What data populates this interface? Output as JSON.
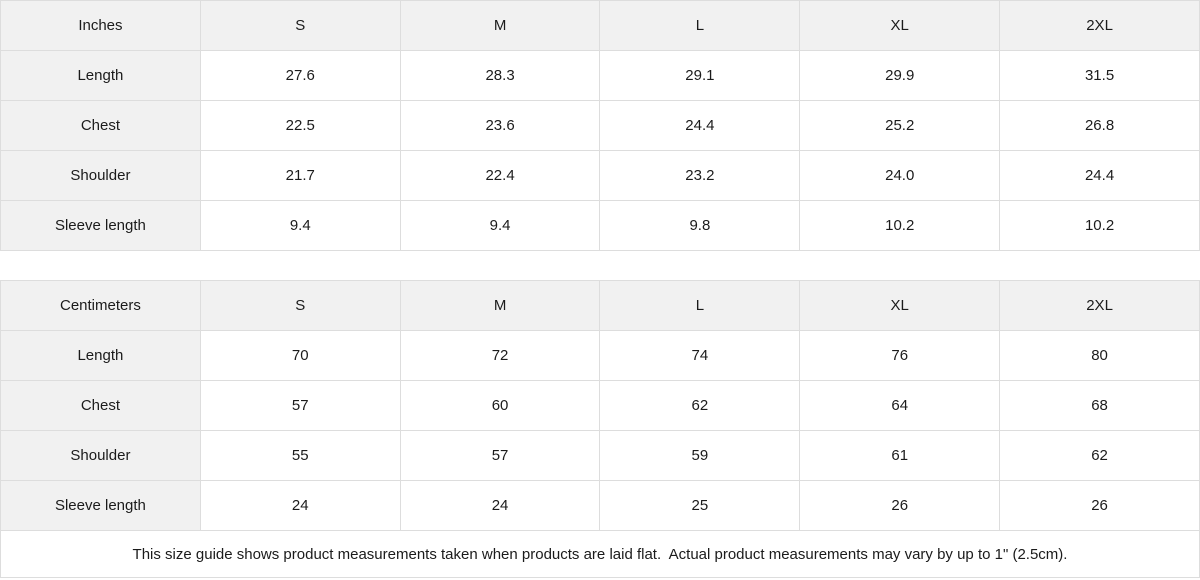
{
  "colors": {
    "header_bg": "#f1f1f1",
    "border": "#dddddd",
    "text": "#1b1b1b",
    "cell_bg": "#ffffff"
  },
  "footer": {
    "note": "This size guide shows product measurements taken when products are laid flat.  Actual product measurements may vary by up to 1\" (2.5cm)."
  },
  "chart_data": [
    {
      "type": "table",
      "columns": [
        "Inches",
        "S",
        "M",
        "L",
        "XL",
        "2XL"
      ],
      "rows": [
        [
          "Length",
          "27.6",
          "28.3",
          "29.1",
          "29.9",
          "31.5"
        ],
        [
          "Chest",
          "22.5",
          "23.6",
          "24.4",
          "25.2",
          "26.8"
        ],
        [
          "Shoulder",
          "21.7",
          "22.4",
          "23.2",
          "24.0",
          "24.4"
        ],
        [
          "Sleeve length",
          "9.4",
          "9.4",
          "9.8",
          "10.2",
          "10.2"
        ]
      ]
    },
    {
      "type": "table",
      "columns": [
        "Centimeters",
        "S",
        "M",
        "L",
        "XL",
        "2XL"
      ],
      "rows": [
        [
          "Length",
          "70",
          "72",
          "74",
          "76",
          "80"
        ],
        [
          "Chest",
          "57",
          "60",
          "62",
          "64",
          "68"
        ],
        [
          "Shoulder",
          "55",
          "57",
          "59",
          "61",
          "62"
        ],
        [
          "Sleeve length",
          "24",
          "24",
          "25",
          "26",
          "26"
        ]
      ]
    }
  ]
}
